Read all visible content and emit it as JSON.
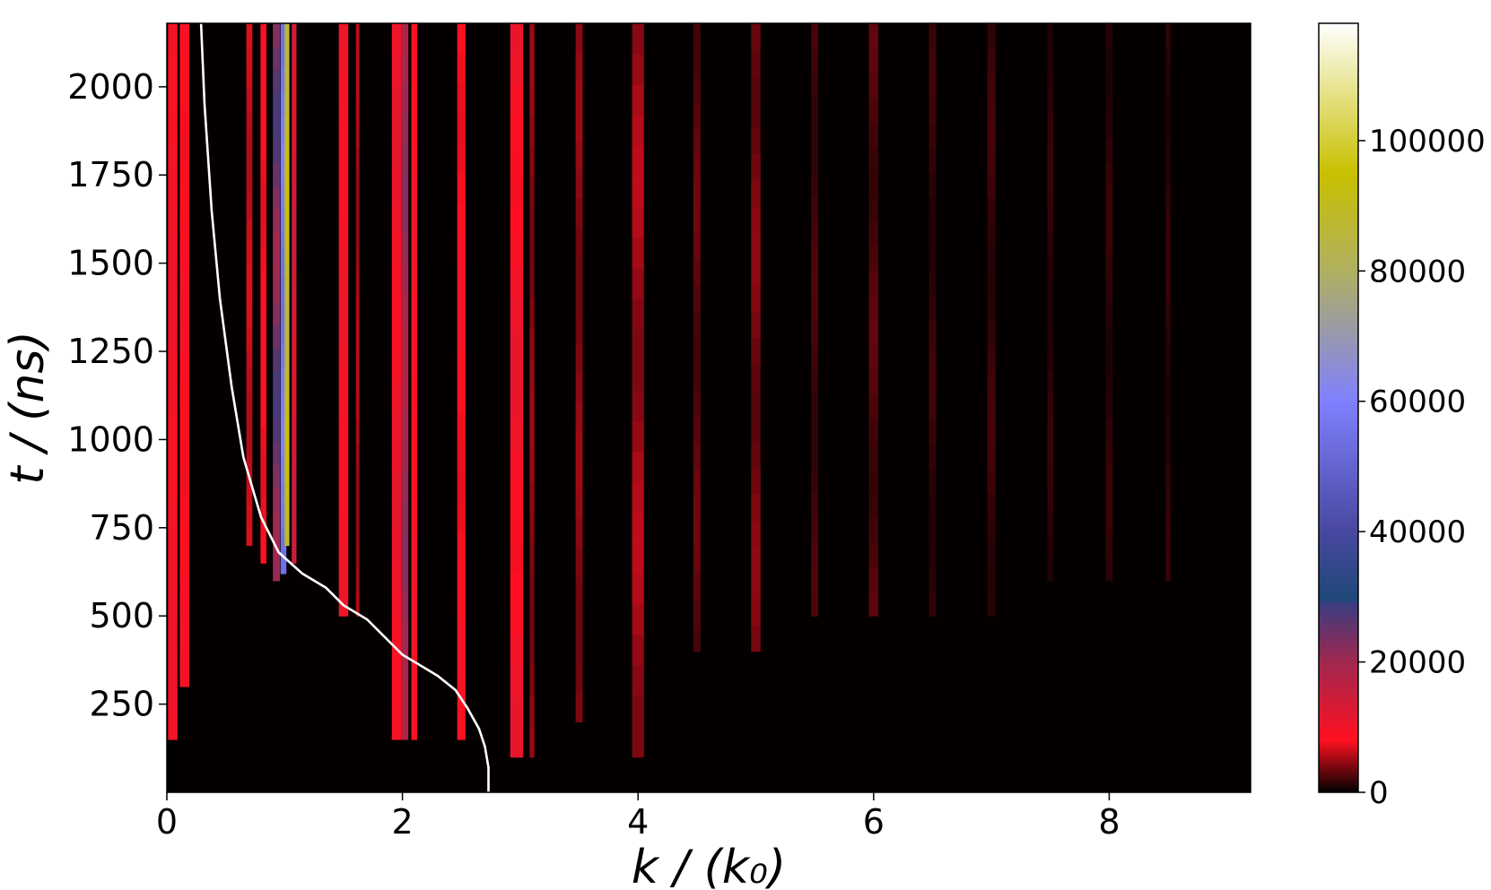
{
  "chart_data": {
    "type": "heatmap",
    "title": "",
    "xlabel": "k / (k₀)",
    "ylabel": "t / (ns)",
    "xlim": [
      0,
      9.2
    ],
    "ylim": [
      0,
      2180
    ],
    "grid": false,
    "x_ticks": [
      0,
      2,
      4,
      6,
      8
    ],
    "y_ticks": [
      250,
      500,
      750,
      1000,
      1250,
      1500,
      1750,
      2000
    ],
    "colorbar": {
      "range": [
        0,
        118000
      ],
      "ticks": [
        0,
        20000,
        40000,
        60000,
        80000,
        100000
      ],
      "stops": [
        {
          "value": 0,
          "color": "#000000"
        },
        {
          "value": 8000,
          "color": "#ff1020"
        },
        {
          "value": 20000,
          "color": "#a02850"
        },
        {
          "value": 29000,
          "color": "#3a3c80"
        },
        {
          "value": 29500,
          "color": "#1e4878"
        },
        {
          "value": 40000,
          "color": "#4848a0"
        },
        {
          "value": 60000,
          "color": "#8080ff"
        },
        {
          "value": 80000,
          "color": "#b0b060"
        },
        {
          "value": 95000,
          "color": "#c8c000"
        },
        {
          "value": 118000,
          "color": "#ffffff"
        }
      ]
    },
    "bands": [
      {
        "k": 0.05,
        "width": 0.08,
        "t_start": 150,
        "intensity": 10000,
        "fade": 0.1
      },
      {
        "k": 0.15,
        "width": 0.08,
        "t_start": 300,
        "intensity": 9000,
        "fade": 0.15
      },
      {
        "k": 0.7,
        "width": 0.05,
        "t_start": 700,
        "intensity": 7000,
        "fade": 0.2
      },
      {
        "k": 0.82,
        "width": 0.05,
        "t_start": 650,
        "intensity": 9000,
        "fade": 0.2
      },
      {
        "k": 0.93,
        "width": 0.06,
        "t_start": 600,
        "intensity": 28000,
        "fade": 0.3
      },
      {
        "k": 0.99,
        "width": 0.05,
        "t_start": 620,
        "intensity": 60000,
        "fade": 0.1
      },
      {
        "k": 1.02,
        "width": 0.04,
        "t_start": 700,
        "intensity": 95000,
        "fade": 0.1
      },
      {
        "k": 1.08,
        "width": 0.04,
        "t_start": 650,
        "intensity": 15000,
        "fade": 0.2
      },
      {
        "k": 1.5,
        "width": 0.08,
        "t_start": 500,
        "intensity": 10000,
        "fade": 0.15
      },
      {
        "k": 1.62,
        "width": 0.03,
        "t_start": 500,
        "intensity": 6000,
        "fade": 0.25
      },
      {
        "k": 1.95,
        "width": 0.08,
        "t_start": 150,
        "intensity": 11000,
        "fade": 0.2
      },
      {
        "k": 2.02,
        "width": 0.06,
        "t_start": 150,
        "intensity": 22000,
        "fade": 0.2
      },
      {
        "k": 2.1,
        "width": 0.05,
        "t_start": 150,
        "intensity": 10000,
        "fade": 0.2
      },
      {
        "k": 2.5,
        "width": 0.07,
        "t_start": 150,
        "intensity": 9000,
        "fade": 0.2
      },
      {
        "k": 2.97,
        "width": 0.11,
        "t_start": 100,
        "intensity": 11000,
        "fade": 0.3
      },
      {
        "k": 3.1,
        "width": 0.04,
        "t_start": 100,
        "intensity": 5000,
        "fade": 0.3
      },
      {
        "k": 3.5,
        "width": 0.06,
        "t_start": 200,
        "intensity": 5000,
        "fade": 0.35
      },
      {
        "k": 4.0,
        "width": 0.1,
        "t_start": 100,
        "intensity": 6000,
        "fade": 0.35
      },
      {
        "k": 4.5,
        "width": 0.06,
        "t_start": 400,
        "intensity": 3500,
        "fade": 0.4
      },
      {
        "k": 5.0,
        "width": 0.08,
        "t_start": 400,
        "intensity": 4500,
        "fade": 0.4
      },
      {
        "k": 5.5,
        "width": 0.06,
        "t_start": 500,
        "intensity": 2500,
        "fade": 0.45
      },
      {
        "k": 6.0,
        "width": 0.08,
        "t_start": 500,
        "intensity": 3000,
        "fade": 0.45
      },
      {
        "k": 6.5,
        "width": 0.06,
        "t_start": 500,
        "intensity": 2000,
        "fade": 0.5
      },
      {
        "k": 7.0,
        "width": 0.07,
        "t_start": 500,
        "intensity": 2200,
        "fade": 0.5
      },
      {
        "k": 7.5,
        "width": 0.05,
        "t_start": 600,
        "intensity": 1800,
        "fade": 0.5
      },
      {
        "k": 8.0,
        "width": 0.06,
        "t_start": 600,
        "intensity": 1800,
        "fade": 0.5
      },
      {
        "k": 8.5,
        "width": 0.04,
        "t_start": 600,
        "intensity": 1800,
        "fade": 0.5
      }
    ],
    "series": [
      {
        "x": [
          2.73,
          2.73,
          2.7,
          2.65,
          2.55,
          2.45,
          2.3,
          2.15,
          2.0,
          1.85,
          1.7,
          1.5,
          1.35,
          1.15,
          0.95,
          0.8,
          0.65,
          0.55,
          0.45,
          0.38,
          0.32,
          0.29
        ],
        "y": [
          0,
          70,
          130,
          180,
          240,
          290,
          330,
          360,
          390,
          440,
          490,
          530,
          580,
          620,
          680,
          780,
          950,
          1150,
          1400,
          1650,
          1950,
          2180
        ]
      }
    ]
  }
}
